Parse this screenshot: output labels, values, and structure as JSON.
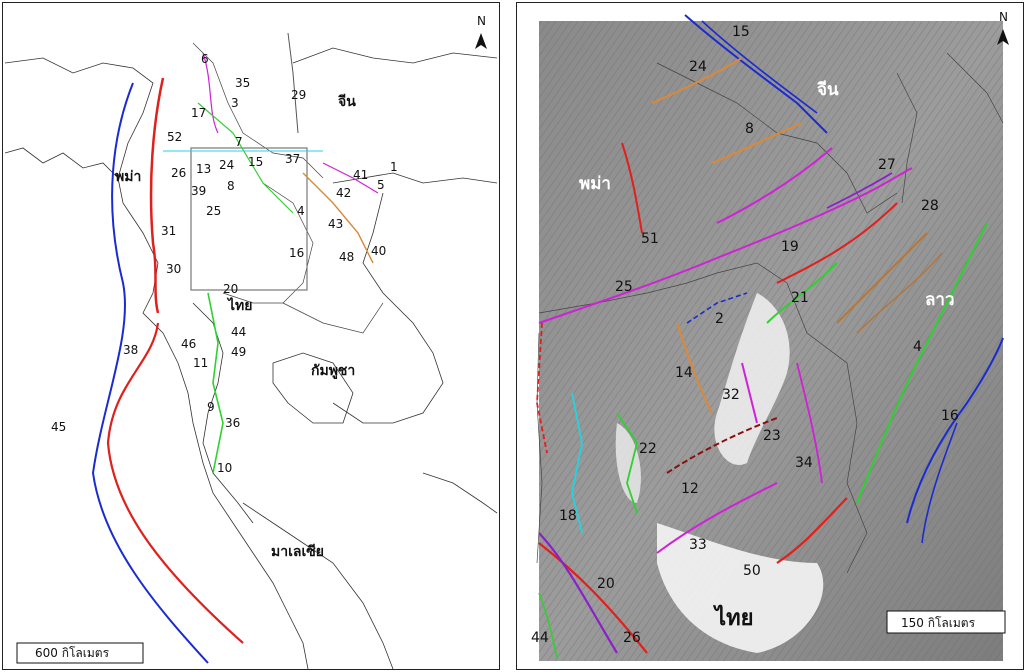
{
  "left_map": {
    "north_label": "N",
    "scale_label": "600 กิโลเมตร",
    "countries": {
      "myanmar": "พม่า",
      "china": "จีน",
      "thailand": "ไทย",
      "cambodia": "กัมพูชา",
      "malaysia": "มาเลเซีย"
    },
    "fault_numbers": [
      "6",
      "35",
      "3",
      "29",
      "17",
      "52",
      "7",
      "26",
      "13",
      "24",
      "15",
      "37",
      "41",
      "1",
      "5",
      "39",
      "8",
      "42",
      "25",
      "4",
      "43",
      "31",
      "16",
      "48",
      "40",
      "30",
      "20",
      "44",
      "38",
      "46",
      "49",
      "11",
      "45",
      "9",
      "36",
      "10"
    ]
  },
  "right_map": {
    "north_label": "N",
    "scale_label": "150 กิโลเมตร",
    "countries": {
      "china": "จีน",
      "myanmar": "พม่า",
      "laos": "ลาว",
      "thailand": "ไทย"
    },
    "fault_numbers": [
      "15",
      "24",
      "8",
      "27",
      "28",
      "51",
      "19",
      "25",
      "21",
      "2",
      "4",
      "14",
      "32",
      "23",
      "16",
      "22",
      "34",
      "12",
      "18",
      "33",
      "50",
      "20",
      "44",
      "26"
    ]
  },
  "colors": {
    "red": "#e0201c",
    "blue": "#1a2bd0",
    "green": "#2fd02f",
    "magenta": "#d020d8",
    "orange": "#d9893a",
    "cyan": "#22d4e0",
    "brown": "#b07840",
    "darkred": "#8a1010",
    "purple": "#8a20c8"
  }
}
